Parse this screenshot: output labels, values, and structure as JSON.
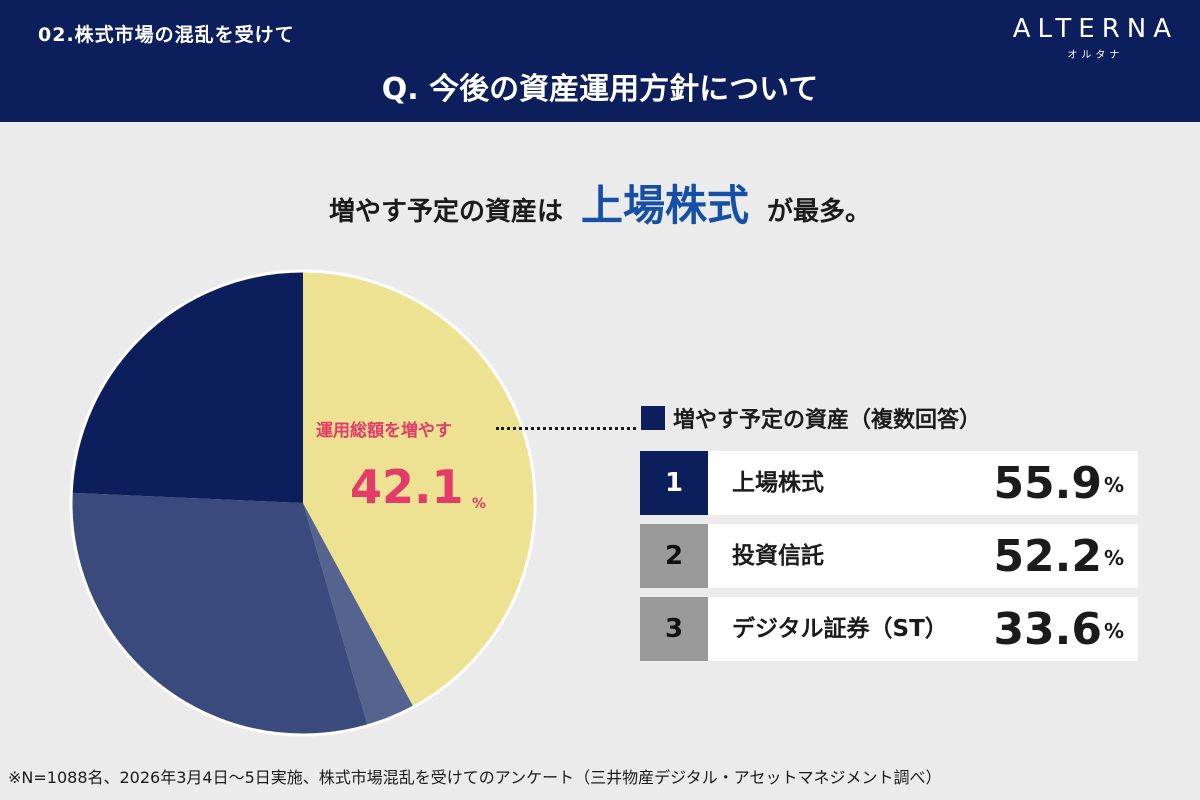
{
  "header": {
    "section_label": "02.株式市場の混乱を受けて",
    "question": "Q. 今後の資産運用方針について",
    "logo_main": "ALTERNA",
    "logo_sub": "オルタナ"
  },
  "headline": {
    "part1": "増やす予定の資産は",
    "highlight": "上場株式",
    "part2": "が最多。"
  },
  "colors": {
    "navy": "#0c1e5b",
    "highlight_blue": "#1650a6",
    "pink": "#e33b6a",
    "gray_rank": "#9a9a9a"
  },
  "chart_data": {
    "type": "pie",
    "slices": [
      {
        "label": "運用総額を増やす",
        "value": 42.1,
        "color": "#ede291"
      },
      {
        "label": "",
        "value": 3.4,
        "color": "#55648f"
      },
      {
        "label": "",
        "value": 30.2,
        "color": "#3a4a7c"
      },
      {
        "label": "",
        "value": 24.3,
        "color": "#0c1e5b"
      }
    ],
    "callout": {
      "label": "運用総額を増やす",
      "value": "42.1",
      "unit": "%"
    }
  },
  "ranking": {
    "title": "増やす予定の資産（複数回答）",
    "items": [
      {
        "rank": "1",
        "name": "上場株式",
        "value": "55.9",
        "unit": "%"
      },
      {
        "rank": "2",
        "name": "投資信託",
        "value": "52.2",
        "unit": "%"
      },
      {
        "rank": "3",
        "name": "デジタル証券（ST）",
        "value": "33.6",
        "unit": "%"
      }
    ]
  },
  "footnote": "※N=1088名、2026年3月4日〜5日実施、株式市場混乱を受けてのアンケート（三井物産デジタル・アセットマネジメント調べ）"
}
